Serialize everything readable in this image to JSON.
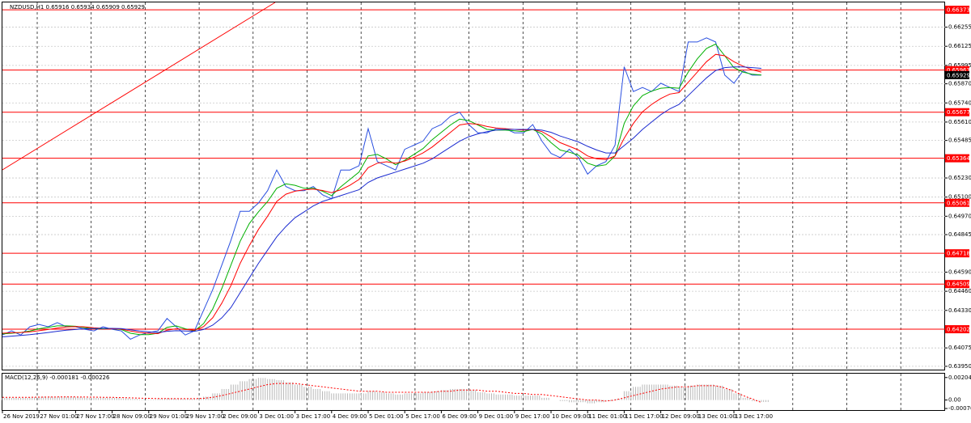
{
  "chart_data": [
    {
      "type": "line",
      "title": "NZDUSD,H1  0.65916 0.65934 0.65909 0.65929",
      "categories": [
        "26 Nov 2019",
        null,
        null,
        null,
        "27 Nov 01:00",
        null,
        null,
        null,
        "27 Nov 17:00",
        null,
        null,
        null,
        "28 Nov 09:00",
        null,
        null,
        null,
        "29 Nov 01:00",
        null,
        null,
        null,
        "29 Nov 17:00",
        null,
        null,
        null,
        "2 Dec 09:00",
        null,
        null,
        null,
        "3 Dec 01:00",
        null,
        null,
        null,
        "3 Dec 17:00",
        null,
        null,
        null,
        "4 Dec 09:00",
        null,
        null,
        null,
        "5 Dec 01:00",
        null,
        null,
        null,
        "5 Dec 17:00",
        null,
        null,
        null,
        "6 Dec 09:00",
        null,
        null,
        null,
        "9 Dec 01:00",
        null,
        null,
        null,
        "9 Dec 17:00",
        null,
        null,
        null,
        "10 Dec 09:00",
        null,
        null,
        null,
        "11 Dec 01:00",
        null,
        null,
        null,
        "11 Dec 17:00",
        null,
        null,
        null,
        "12 Dec 09:00",
        null,
        null,
        null,
        "13 Dec 01:00",
        null,
        null,
        null,
        "13 Dec 17:00",
        null,
        null,
        null
      ],
      "series": [
        {
          "name": "NZDUSD",
          "color": "#2a4fe0",
          "values": [
            0.64163,
            0.64191,
            0.64163,
            0.64219,
            0.64235,
            0.64219,
            0.64247,
            0.64219,
            0.64219,
            0.64202,
            0.64191,
            0.64219,
            0.64202,
            0.64191,
            0.64134,
            0.64163,
            0.64179,
            0.64191,
            0.64275,
            0.64219,
            0.64163,
            0.64191,
            0.64331,
            0.64471,
            0.64639,
            0.64808,
            0.65004,
            0.65004,
            0.6506,
            0.65144,
            0.65284,
            0.65172,
            0.65144,
            0.65144,
            0.65172,
            0.65116,
            0.65088,
            0.65284,
            0.65284,
            0.65313,
            0.65565,
            0.65341,
            0.65313,
            0.65284,
            0.65425,
            0.65453,
            0.65481,
            0.65565,
            0.65593,
            0.65649,
            0.65677,
            0.65593,
            0.65537,
            0.65537,
            0.65565,
            0.65565,
            0.65537,
            0.65537,
            0.65593,
            0.65481,
            0.65397,
            0.65369,
            0.65425,
            0.65369,
            0.65256,
            0.65313,
            0.65341,
            0.65453,
            0.65986,
            0.65817,
            0.65845,
            0.65817,
            0.65874,
            0.65845,
            0.65817,
            0.66154,
            0.66154,
            0.66182,
            0.66154,
            0.65929,
            0.65874,
            0.65958,
            0.65929,
            0.65929
          ]
        },
        {
          "name": "MA fast",
          "color": "#00b000",
          "values": [
            0.6417,
            0.64175,
            0.6418,
            0.6419,
            0.64205,
            0.64215,
            0.64225,
            0.64225,
            0.64222,
            0.64212,
            0.64205,
            0.64205,
            0.64205,
            0.642,
            0.64175,
            0.64165,
            0.64165,
            0.64175,
            0.64215,
            0.64225,
            0.64205,
            0.6419,
            0.6424,
            0.6434,
            0.6448,
            0.6464,
            0.648,
            0.6492,
            0.65,
            0.6507,
            0.6516,
            0.6519,
            0.6518,
            0.6516,
            0.6516,
            0.6514,
            0.6511,
            0.6517,
            0.6522,
            0.6527,
            0.6538,
            0.6539,
            0.6536,
            0.6532,
            0.6535,
            0.6539,
            0.6543,
            0.6549,
            0.6554,
            0.6559,
            0.6563,
            0.6562,
            0.6559,
            0.6556,
            0.65555,
            0.65555,
            0.6555,
            0.65545,
            0.6556,
            0.6553,
            0.6547,
            0.6542,
            0.65405,
            0.65385,
            0.6533,
            0.6531,
            0.6532,
            0.6538,
            0.656,
            0.6572,
            0.6579,
            0.6582,
            0.6584,
            0.65845,
            0.6584,
            0.6595,
            0.6604,
            0.6611,
            0.6614,
            0.6606,
            0.6598,
            0.6595,
            0.65935,
            0.6593
          ]
        },
        {
          "name": "MA medium",
          "color": "#ff0000",
          "values": [
            0.64175,
            0.64178,
            0.6418,
            0.64185,
            0.64192,
            0.642,
            0.6421,
            0.64217,
            0.6422,
            0.64218,
            0.64212,
            0.64208,
            0.64205,
            0.64203,
            0.6419,
            0.6418,
            0.64175,
            0.64172,
            0.64195,
            0.64205,
            0.642,
            0.64195,
            0.6422,
            0.6428,
            0.6438,
            0.645,
            0.6465,
            0.6477,
            0.6488,
            0.6497,
            0.6507,
            0.6512,
            0.6514,
            0.6515,
            0.65155,
            0.65145,
            0.6513,
            0.6515,
            0.6518,
            0.6522,
            0.653,
            0.6533,
            0.6534,
            0.6533,
            0.65345,
            0.6537,
            0.654,
            0.6544,
            0.6549,
            0.6554,
            0.6559,
            0.656,
            0.65595,
            0.6558,
            0.6557,
            0.65565,
            0.6556,
            0.65555,
            0.6556,
            0.65545,
            0.6551,
            0.6547,
            0.65445,
            0.6542,
            0.6538,
            0.6536,
            0.65355,
            0.6538,
            0.655,
            0.656,
            0.6568,
            0.6573,
            0.6577,
            0.658,
            0.6581,
            0.6588,
            0.6595,
            0.6602,
            0.6607,
            0.6606,
            0.6602,
            0.6599,
            0.65965,
            0.6595
          ]
        },
        {
          "name": "MA slow",
          "color": "#1a2ad0",
          "values": [
            0.6415,
            0.64155,
            0.6416,
            0.64165,
            0.64172,
            0.6418,
            0.64188,
            0.64195,
            0.642,
            0.64205,
            0.64207,
            0.64208,
            0.64208,
            0.64206,
            0.64198,
            0.6419,
            0.64185,
            0.6418,
            0.64188,
            0.64192,
            0.6419,
            0.64188,
            0.642,
            0.6423,
            0.6428,
            0.6435,
            0.6445,
            0.6455,
            0.6465,
            0.6474,
            0.6483,
            0.649,
            0.6496,
            0.65,
            0.6504,
            0.6507,
            0.6509,
            0.6511,
            0.6513,
            0.6515,
            0.652,
            0.6523,
            0.6525,
            0.6527,
            0.6529,
            0.6531,
            0.6533,
            0.6536,
            0.654,
            0.6544,
            0.6548,
            0.6551,
            0.6553,
            0.65545,
            0.65555,
            0.6556,
            0.6556,
            0.6556,
            0.6556,
            0.65555,
            0.6554,
            0.65515,
            0.65495,
            0.65475,
            0.65445,
            0.6542,
            0.654,
            0.654,
            0.6545,
            0.655,
            0.6556,
            0.6561,
            0.6566,
            0.657,
            0.6573,
            0.6579,
            0.6585,
            0.6591,
            0.6596,
            0.6598,
            0.65985,
            0.65985,
            0.6598,
            0.65975
          ]
        }
      ],
      "ylim": [
        0.63922,
        0.66423
      ],
      "yticks": [
        0.66255,
        0.66125,
        0.65995,
        {
          "value": 0.6587,
          "label": "0.65870"
        },
        {
          "value": 0.6574,
          "label": "0.65740"
        },
        {
          "value": 0.6561,
          "label": "0.65610"
        },
        0.65485,
        {
          "value": 0.6523,
          "label": "0.65230"
        },
        {
          "value": 0.651,
          "label": "0.65100"
        },
        {
          "value": 0.6497,
          "label": "0.64970"
        },
        0.64845,
        {
          "value": 0.6459,
          "label": "0.64590"
        },
        {
          "value": 0.6446,
          "label": "0.64460"
        },
        {
          "value": 0.6433,
          "label": "0.64330"
        },
        0.64075,
        {
          "value": 0.6395,
          "label": "0.63950"
        }
      ],
      "levels": [
        0.66373,
        0.65963,
        0.65677,
        0.65364,
        0.65061,
        0.64718,
        0.64509,
        0.64202
      ],
      "level_color": "#ff0000",
      "current_price": 0.65929,
      "grid": true
    },
    {
      "type": "macd",
      "title": "MACD(12,26,9) -0.000181 -0.000226",
      "series": [
        {
          "name": "MACD",
          "color": "#b8b8b8",
          "values": [
            0.0002,
            0.0002,
            0.0002,
            0.00025,
            0.0003,
            0.0003,
            0.0003,
            0.0003,
            0.00025,
            0.0002,
            0.0002,
            0.0002,
            0.0002,
            0.00015,
            0.0001,
            5e-05,
            5e-05,
            0.0001,
            0.00015,
            0.0001,
            0.0001,
            0.0001,
            0.0003,
            0.0006,
            0.001,
            0.0014,
            0.0017,
            0.0019,
            0.002,
            0.0019,
            0.0018,
            0.0016,
            0.0014,
            0.0012,
            0.001,
            0.0008,
            0.0006,
            0.0006,
            0.0006,
            0.0006,
            0.0008,
            0.0007,
            0.0006,
            0.0005,
            0.0006,
            0.0006,
            0.0007,
            0.0008,
            0.0009,
            0.001,
            0.001,
            0.0009,
            0.0007,
            0.0006,
            0.0005,
            0.0005,
            0.0004,
            0.0004,
            0.0004,
            0.0002,
            0,
            -0.0001,
            -0.0002,
            -0.0002,
            -0.0003,
            -0.0002,
            -0.0001,
            0.0001,
            0.0008,
            0.0012,
            0.0014,
            0.0014,
            0.0014,
            0.0013,
            0.0012,
            0.0013,
            0.0014,
            0.0014,
            0.0013,
            0.001,
            0.0006,
            0.0002,
            -0.0001,
            -0.000181
          ]
        },
        {
          "name": "Signal",
          "color": "#ff0000",
          "values": [
            0.00025,
            0.00025,
            0.00025,
            0.00025,
            0.00026,
            0.00027,
            0.00028,
            0.00028,
            0.00028,
            0.00027,
            0.00026,
            0.00025,
            0.00024,
            0.00022,
            0.0002,
            0.00017,
            0.00015,
            0.00013,
            0.00013,
            0.00012,
            0.00012,
            0.00012,
            0.00015,
            0.00025,
            0.0004,
            0.0006,
            0.0008,
            0.001,
            0.0012,
            0.0014,
            0.0015,
            0.0015,
            0.0015,
            0.0014,
            0.0013,
            0.0012,
            0.0011,
            0.001,
            0.0009,
            0.0008,
            0.0008,
            0.0008,
            0.0007,
            0.0007,
            0.0007,
            0.0007,
            0.0007,
            0.0007,
            0.0008,
            0.0008,
            0.0009,
            0.0009,
            0.0009,
            0.0008,
            0.0008,
            0.0007,
            0.0006,
            0.0006,
            0.0005,
            0.0005,
            0.0004,
            0.0003,
            0.0002,
            0.0001,
            0,
            0,
            -0.0001,
            0,
            0.0002,
            0.0004,
            0.0006,
            0.0008,
            0.001,
            0.0011,
            0.0012,
            0.0012,
            0.0013,
            0.0013,
            0.0013,
            0.0011,
            0.0008,
            0.0004,
            0.0001,
            -0.000226
          ]
        }
      ],
      "ylim": [
        -0.000984,
        0.00239
      ],
      "yticks": [
        0.00204,
        {
          "value": 0,
          "label": "0.00"
        },
        -0.000769
      ]
    }
  ]
}
